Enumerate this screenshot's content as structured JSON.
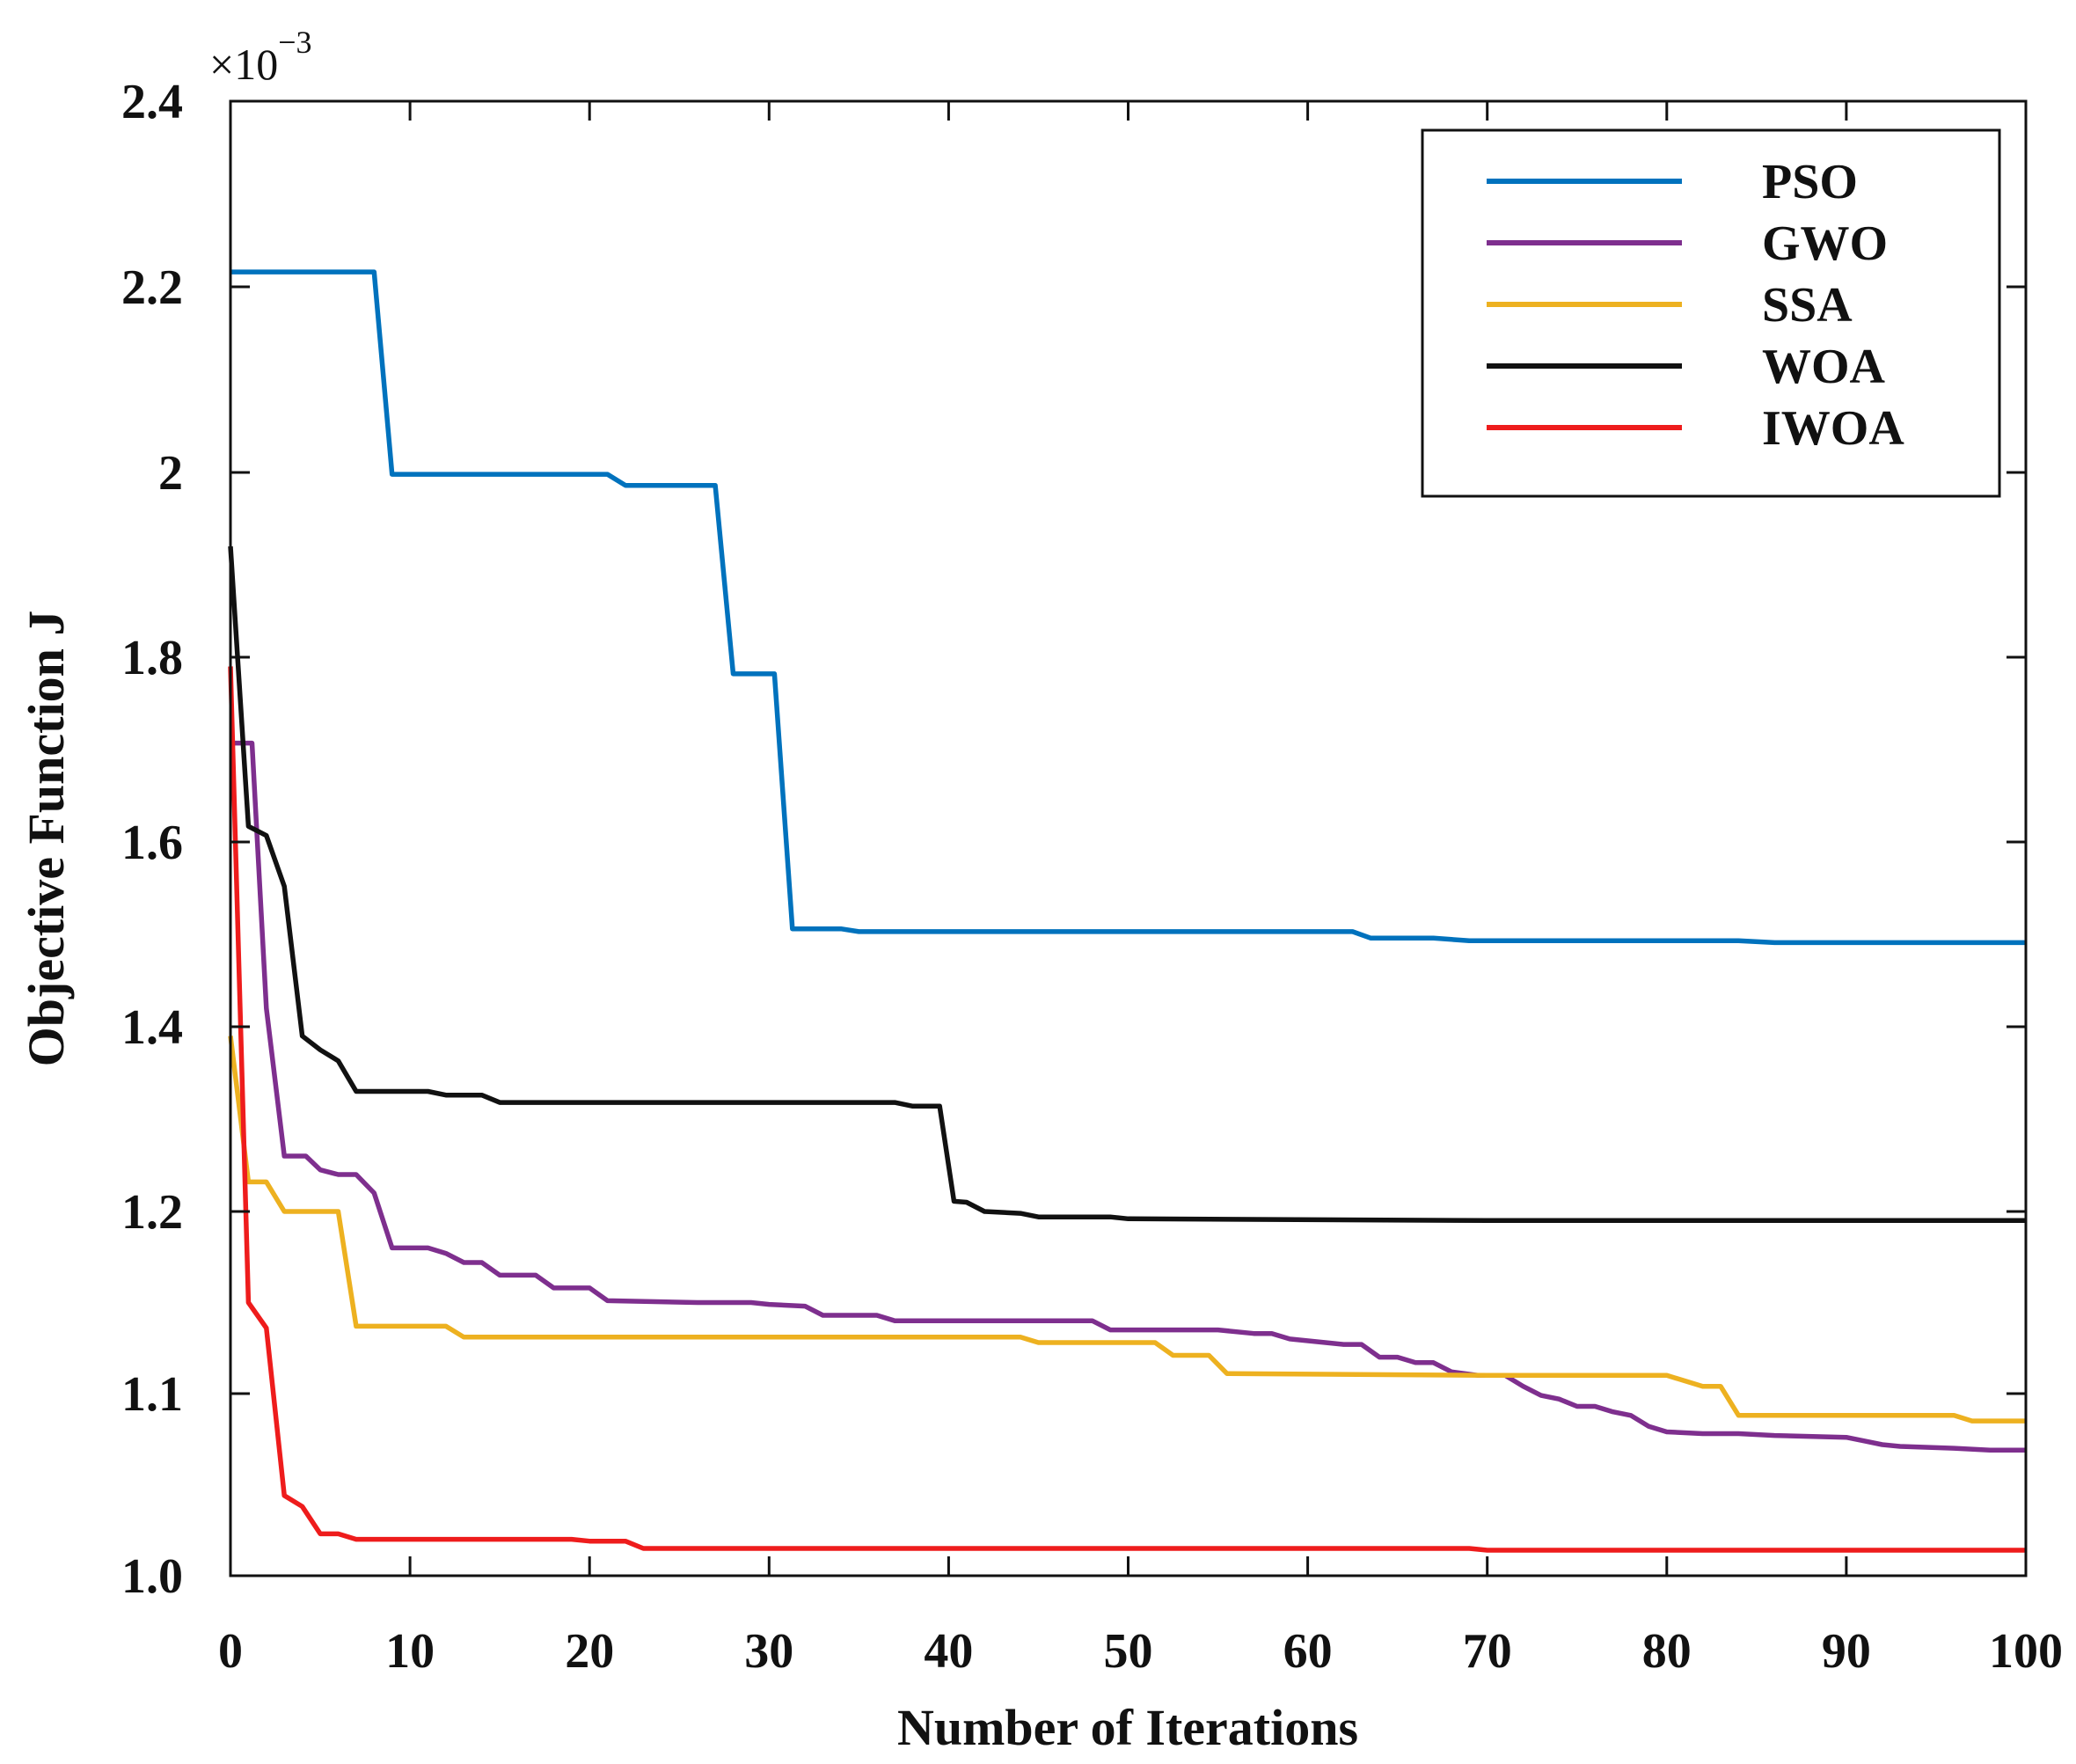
{
  "chart_data": {
    "type": "line",
    "title": "",
    "xlabel": "Number of Iterations",
    "ylabel": "Objective Function J",
    "y_exponent_label": "×10",
    "y_exponent_power": "−3",
    "xlim": [
      0,
      100
    ],
    "ylim": [
      1.0,
      2.4
    ],
    "x_ticks": [
      "0",
      "10",
      "20",
      "30",
      "40",
      "50",
      "60",
      "70",
      "80",
      "90",
      "100"
    ],
    "y_ticks": [
      "1.0",
      "1.1",
      "1.2",
      "1.4",
      "1.6",
      "1.8",
      "2",
      "2.2",
      "2.4"
    ],
    "y_tick_values": [
      1.0,
      1.1,
      1.2,
      1.4,
      1.6,
      1.8,
      2.0,
      2.2,
      2.4
    ],
    "legend_position": "top-right",
    "series": [
      {
        "name": "PSO",
        "color": "#0072BD",
        "points": [
          [
            0,
            2.216
          ],
          [
            8,
            2.216
          ],
          [
            9,
            1.998
          ],
          [
            21,
            1.998
          ],
          [
            22,
            1.986
          ],
          [
            27,
            1.986
          ],
          [
            28,
            1.782
          ],
          [
            30.3,
            1.782
          ],
          [
            31.3,
            1.506
          ],
          [
            34,
            1.506
          ],
          [
            35,
            1.503
          ],
          [
            62.5,
            1.503
          ],
          [
            63.5,
            1.496
          ],
          [
            67,
            1.496
          ],
          [
            69,
            1.493
          ],
          [
            84,
            1.493
          ],
          [
            86,
            1.491
          ],
          [
            100,
            1.491
          ]
        ]
      },
      {
        "name": "GWO",
        "color": "#7E2F8E",
        "points": [
          [
            0,
            1.707
          ],
          [
            1.2,
            1.707
          ],
          [
            2,
            1.42
          ],
          [
            3,
            1.26
          ],
          [
            4.2,
            1.26
          ],
          [
            5,
            1.245
          ],
          [
            6,
            1.24
          ],
          [
            7,
            1.24
          ],
          [
            8,
            1.22
          ],
          [
            9,
            1.18
          ],
          [
            11,
            1.18
          ],
          [
            12,
            1.177
          ],
          [
            13,
            1.172
          ],
          [
            14,
            1.172
          ],
          [
            15,
            1.165
          ],
          [
            17,
            1.165
          ],
          [
            18,
            1.158
          ],
          [
            20,
            1.158
          ],
          [
            21,
            1.151
          ],
          [
            26,
            1.15
          ],
          [
            29,
            1.15
          ],
          [
            30,
            1.149
          ],
          [
            32,
            1.148
          ],
          [
            33,
            1.143
          ],
          [
            36,
            1.143
          ],
          [
            37,
            1.14
          ],
          [
            48,
            1.14
          ],
          [
            49,
            1.135
          ],
          [
            55,
            1.135
          ],
          [
            57,
            1.133
          ],
          [
            58,
            1.133
          ],
          [
            59,
            1.13
          ],
          [
            62,
            1.127
          ],
          [
            63,
            1.127
          ],
          [
            64,
            1.12
          ],
          [
            65,
            1.12
          ],
          [
            66,
            1.117
          ],
          [
            67,
            1.117
          ],
          [
            68,
            1.112
          ],
          [
            69.5,
            1.11
          ],
          [
            71,
            1.11
          ],
          [
            72,
            1.104
          ],
          [
            73,
            1.099
          ],
          [
            74,
            1.097
          ],
          [
            75,
            1.093
          ],
          [
            76,
            1.093
          ],
          [
            77,
            1.09
          ],
          [
            78,
            1.088
          ],
          [
            79,
            1.082
          ],
          [
            80,
            1.079
          ],
          [
            82,
            1.078
          ],
          [
            84,
            1.078
          ],
          [
            86,
            1.077
          ],
          [
            90,
            1.076
          ],
          [
            91,
            1.074
          ],
          [
            92,
            1.072
          ],
          [
            93,
            1.071
          ],
          [
            96,
            1.07
          ],
          [
            98,
            1.069
          ],
          [
            100,
            1.069
          ]
        ]
      },
      {
        "name": "SSA",
        "color": "#EDB120",
        "points": [
          [
            0,
            1.39
          ],
          [
            1,
            1.232
          ],
          [
            2,
            1.232
          ],
          [
            3,
            1.2
          ],
          [
            6,
            1.2
          ],
          [
            7,
            1.137
          ],
          [
            12,
            1.137
          ],
          [
            13,
            1.131
          ],
          [
            44,
            1.131
          ],
          [
            45,
            1.128
          ],
          [
            51.5,
            1.128
          ],
          [
            52.5,
            1.121
          ],
          [
            54.5,
            1.121
          ],
          [
            55.5,
            1.111
          ],
          [
            70,
            1.11
          ],
          [
            80,
            1.11
          ],
          [
            82,
            1.104
          ],
          [
            83,
            1.104
          ],
          [
            84,
            1.088
          ],
          [
            96,
            1.088
          ],
          [
            97,
            1.085
          ],
          [
            100,
            1.085
          ]
        ]
      },
      {
        "name": "WOA",
        "color": "#111111",
        "points": [
          [
            0,
            1.92
          ],
          [
            1,
            1.617
          ],
          [
            2,
            1.607
          ],
          [
            3,
            1.552
          ],
          [
            4,
            1.39
          ],
          [
            5,
            1.375
          ],
          [
            6,
            1.363
          ],
          [
            7,
            1.33
          ],
          [
            11,
            1.33
          ],
          [
            12,
            1.326
          ],
          [
            14,
            1.326
          ],
          [
            15,
            1.318
          ],
          [
            37,
            1.318
          ],
          [
            38,
            1.314
          ],
          [
            39.5,
            1.314
          ],
          [
            40.3,
            1.211
          ],
          [
            41,
            1.21
          ],
          [
            42,
            1.2
          ],
          [
            44,
            1.199
          ],
          [
            45,
            1.197
          ],
          [
            49,
            1.197
          ],
          [
            50,
            1.196
          ],
          [
            70,
            1.195
          ],
          [
            100,
            1.195
          ]
        ]
      },
      {
        "name": "IWOA",
        "color": "#EE1C1C",
        "points": [
          [
            0,
            1.79
          ],
          [
            1,
            1.15
          ],
          [
            2,
            1.136
          ],
          [
            3,
            1.044
          ],
          [
            4,
            1.038
          ],
          [
            5,
            1.023
          ],
          [
            6,
            1.023
          ],
          [
            7,
            1.02
          ],
          [
            19,
            1.02
          ],
          [
            20,
            1.019
          ],
          [
            22,
            1.019
          ],
          [
            23,
            1.015
          ],
          [
            69,
            1.015
          ],
          [
            70,
            1.014
          ],
          [
            100,
            1.014
          ]
        ]
      }
    ]
  }
}
